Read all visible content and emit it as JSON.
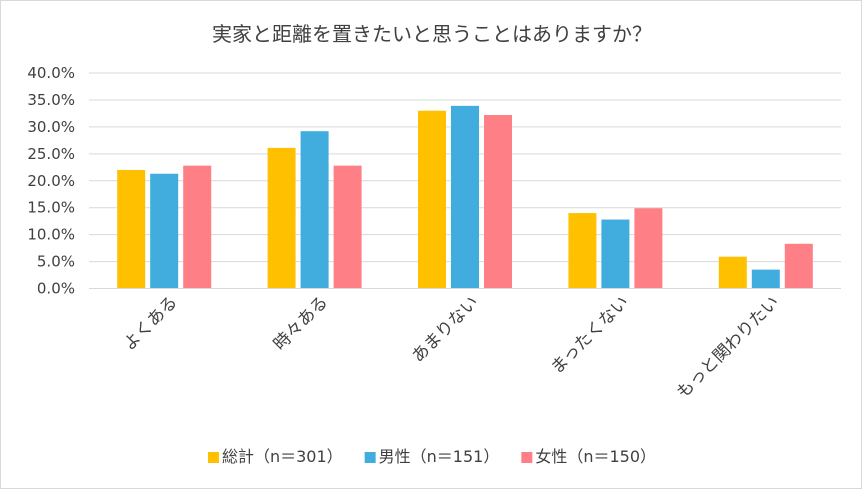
{
  "chart_data": {
    "type": "bar",
    "title": "実家と距離を置きたいと思うことはありますか？",
    "categories": [
      "よくある",
      "時々ある",
      "あまりない",
      "まったくない",
      "もっと関わりたい"
    ],
    "series": [
      {
        "name": "総計（n＝301）",
        "color": "#FFC000",
        "values": [
          22.0,
          26.1,
          33.0,
          14.0,
          5.9
        ]
      },
      {
        "name": "男性（n＝151）",
        "color": "#41ADDF",
        "values": [
          21.3,
          29.2,
          33.9,
          12.8,
          3.5
        ]
      },
      {
        "name": "女性（n＝150）",
        "color": "#FF7F86",
        "values": [
          22.8,
          22.8,
          32.2,
          14.9,
          8.3
        ]
      }
    ],
    "ylim": [
      0,
      40
    ],
    "yticks": [
      "0.0%",
      "5.0%",
      "10.0%",
      "15.0%",
      "20.0%",
      "25.0%",
      "30.0%",
      "35.0%",
      "40.0%"
    ],
    "xlabel": "",
    "ylabel": "",
    "grid": true,
    "legend": "bottom"
  }
}
